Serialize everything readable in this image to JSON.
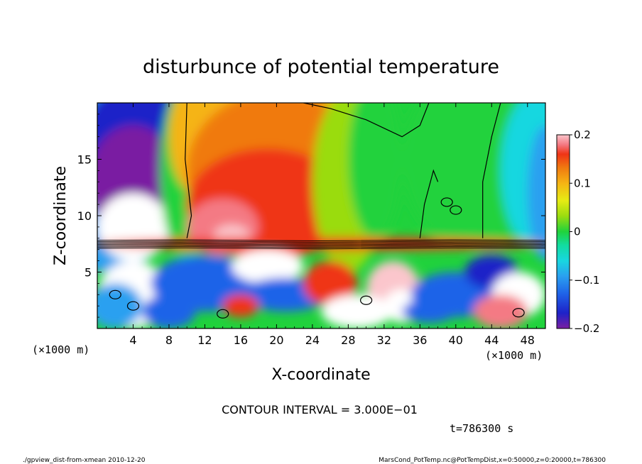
{
  "chart_data": {
    "type": "heatmap",
    "title": "disturbunce of potential temperature",
    "xlabel": "X-coordinate",
    "ylabel": "Z-coordinate",
    "x_unit_left": "(×1000 m)",
    "x_unit_right": "(×1000 m)",
    "xlim": [
      0,
      50
    ],
    "ylim": [
      0,
      20
    ],
    "xticks": [
      4,
      8,
      12,
      16,
      20,
      24,
      28,
      32,
      36,
      40,
      44,
      48
    ],
    "yticks": [
      5,
      10,
      15
    ],
    "colorbar": {
      "range": [
        -0.2,
        0.2
      ],
      "ticks": [
        {
          "value": 0.2,
          "label": "0.2"
        },
        {
          "value": 0.1,
          "label": "0.1"
        },
        {
          "value": 0,
          "label": "0"
        },
        {
          "value": -0.1,
          "label": "−0.1"
        },
        {
          "value": -0.2,
          "label": "−0.2"
        }
      ]
    },
    "contour_interval": "CONTOUR INTERVAL = 3.000E−01",
    "time_label": "t=786300 s",
    "footer_left": "./gpview_dist-from-xmean  2010-12-20",
    "footer_right": "MarsCond_PotTemp.nc@PotTempDist,x=0:50000,z=0:20000,t=786300"
  },
  "colors": {
    "palette": [
      "#7a1fa2",
      "#1e22c8",
      "#1f63e8",
      "#2aa0f0",
      "#18d7e0",
      "#12dca0",
      "#20d23c",
      "#9adc10",
      "#e6ec14",
      "#f5b414",
      "#f07a10",
      "#ef3416",
      "#f47a84",
      "#fbc6cc"
    ]
  }
}
